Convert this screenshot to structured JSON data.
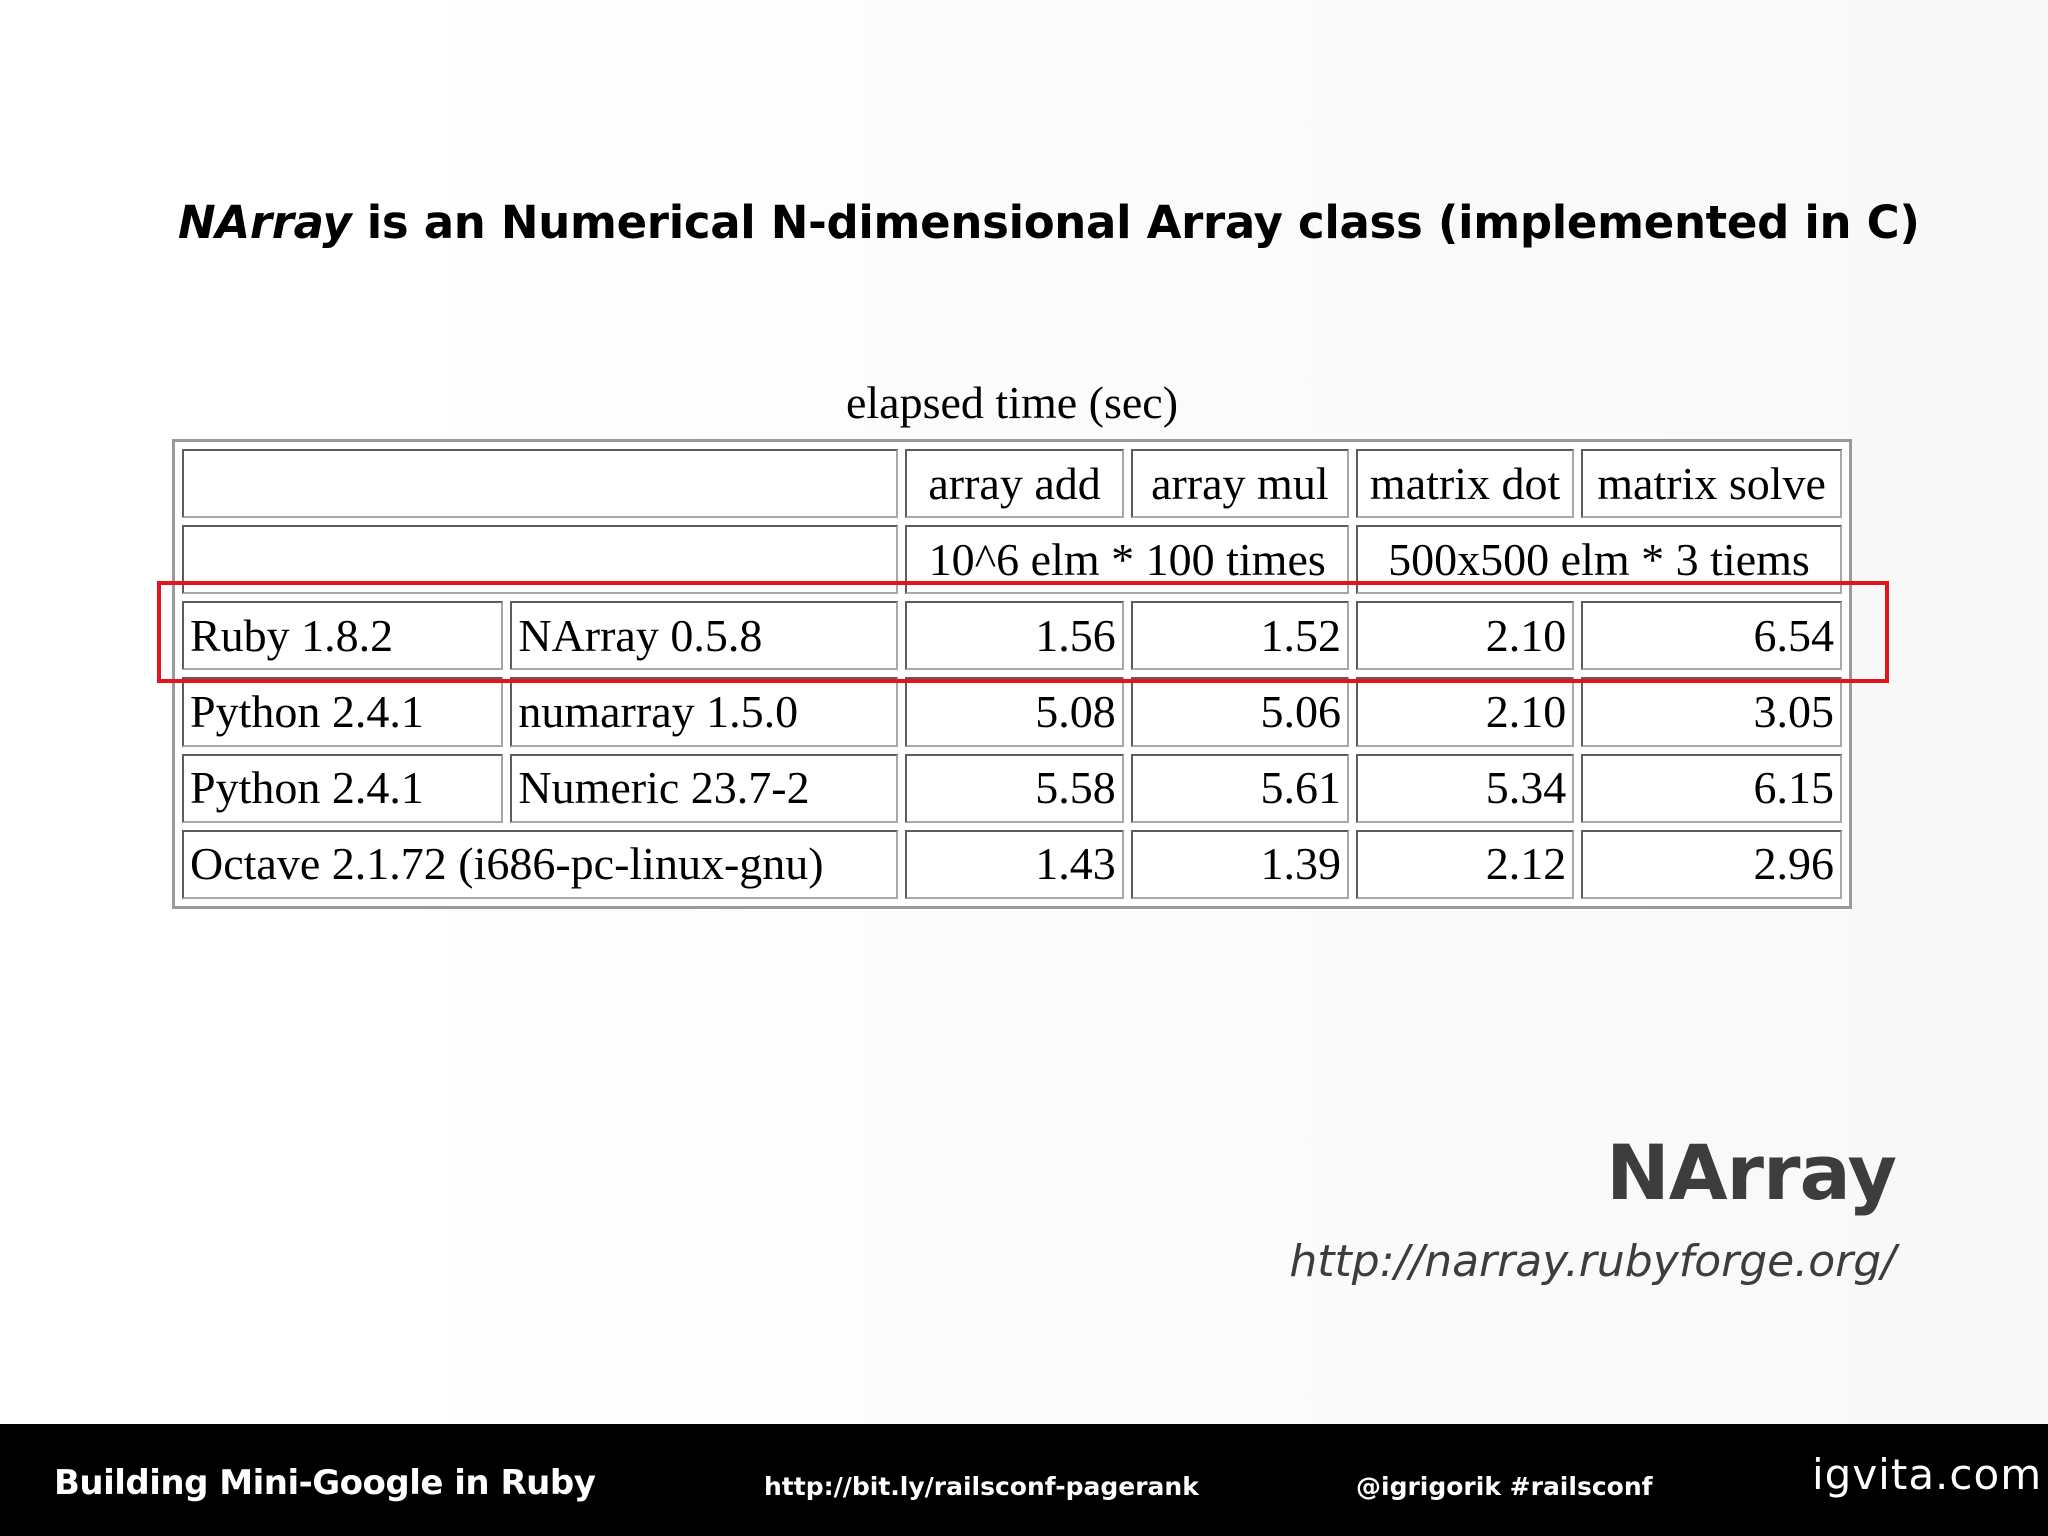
{
  "slide": {
    "headline_em": "NArray",
    "headline_rest": " is an Numerical N-dimensional Array class (implemented in C)",
    "table_caption": "elapsed time (sec)",
    "side_title": "NArray",
    "side_link": "http://narray.rubyforge.org/"
  },
  "table": {
    "headers": [
      "",
      "array add",
      "array mul",
      "matrix dot",
      "matrix solve"
    ],
    "subheaders": [
      "",
      "10^6 elm * 100 times",
      "500x500 elm * 3 tiems"
    ],
    "rows": [
      {
        "lang": "Ruby 1.8.2",
        "lib": "NArray 0.5.8",
        "values": [
          "1.56",
          "1.52",
          "2.10",
          "6.54"
        ],
        "highlighted": true
      },
      {
        "lang": "Python 2.4.1",
        "lib": "numarray 1.5.0",
        "values": [
          "5.08",
          "5.06",
          "2.10",
          "3.05"
        ]
      },
      {
        "lang": "Python 2.4.1",
        "lib": "Numeric 23.7-2",
        "values": [
          "5.58",
          "5.61",
          "5.34",
          "6.15"
        ]
      },
      {
        "label": "Octave 2.1.72 (i686-pc-linux-gnu)",
        "values": [
          "1.43",
          "1.39",
          "2.12",
          "2.96"
        ]
      }
    ]
  },
  "footer": {
    "title": "Building Mini-Google in Ruby",
    "url": "http://bit.ly/railsconf-pagerank",
    "handle": "@igrigorik #railsconf",
    "brand": "igvita.com"
  },
  "colors": {
    "highlight": "#e0161d",
    "footer_bg": "#000000",
    "side_text": "#3d3d3d"
  }
}
